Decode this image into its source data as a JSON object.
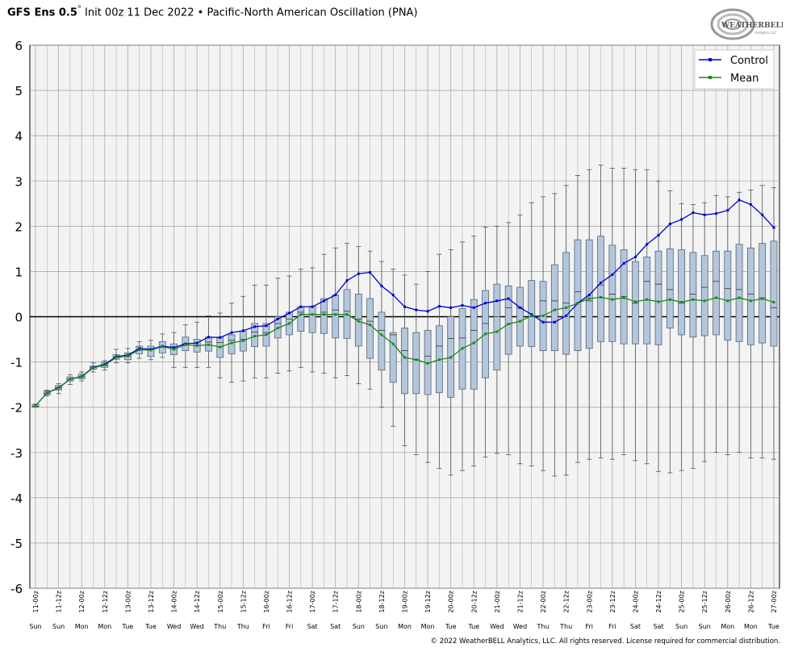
{
  "header": {
    "model": "GFS Ens 0.5",
    "degree": "°",
    "init": "Init 00z 11 Dec 2022",
    "bullet": "•",
    "product": "Pacific-North American Oscillation (PNA)"
  },
  "logo": {
    "text_main": "WEATHERBELL",
    "text_sub": "Analytics LLC"
  },
  "footer": {
    "copyright": "© 2022 WeatherBELL Analytics, LLC. All rights reserved. License required for commercial distribution."
  },
  "colors": {
    "control": "#0000cc",
    "mean": "#1a8a1a",
    "box_fill": "#b4c6dc",
    "box_stroke": "#556677",
    "plot_bg": "#f3f3f3",
    "grid": "#aaaaaa"
  },
  "chart_data": {
    "type": "box",
    "ylim": [
      -6,
      6
    ],
    "yticks": [
      6,
      5,
      4,
      3,
      2,
      1,
      0,
      -1,
      -2,
      -3,
      -4,
      -5,
      -6
    ],
    "grid": true,
    "legend_position": "top-right",
    "x": [
      "11-00z",
      "11-06z",
      "11-12z",
      "11-18z",
      "12-00z",
      "12-06z",
      "12-12z",
      "12-18z",
      "13-00z",
      "13-06z",
      "13-12z",
      "13-18z",
      "14-00z",
      "14-06z",
      "14-12z",
      "14-18z",
      "15-00z",
      "15-06z",
      "15-12z",
      "15-18z",
      "16-00z",
      "16-06z",
      "16-12z",
      "16-18z",
      "17-00z",
      "17-06z",
      "17-12z",
      "17-18z",
      "18-00z",
      "18-06z",
      "18-12z",
      "18-18z",
      "19-00z",
      "19-06z",
      "19-12z",
      "19-18z",
      "20-00z",
      "20-06z",
      "20-12z",
      "20-18z",
      "21-00z",
      "21-06z",
      "21-12z",
      "21-18z",
      "22-00z",
      "22-06z",
      "22-12z",
      "22-18z",
      "23-00z",
      "23-06z",
      "23-12z",
      "23-18z",
      "24-00z",
      "24-06z",
      "24-12z",
      "24-18z",
      "25-00z",
      "25-06z",
      "25-12z",
      "25-18z",
      "26-00z",
      "26-06z",
      "26-12z",
      "26-18z",
      "27-00z"
    ],
    "x_tick_labels": [
      "11-00z",
      "11-12z",
      "12-00z",
      "12-12z",
      "13-00z",
      "13-12z",
      "14-00z",
      "14-12z",
      "15-00z",
      "15-12z",
      "16-00z",
      "16-12z",
      "17-00z",
      "17-12z",
      "18-00z",
      "18-12z",
      "19-00z",
      "19-12z",
      "20-00z",
      "20-12z",
      "21-00z",
      "21-12z",
      "22-00z",
      "22-12z",
      "23-00z",
      "23-12z",
      "24-00z",
      "24-12z",
      "25-00z",
      "25-12z",
      "26-00z",
      "26-12z",
      "27-00z"
    ],
    "x_day_labels": [
      "Sun",
      "Sun",
      "Mon",
      "Mon",
      "Tue",
      "Tue",
      "Wed",
      "Wed",
      "Thu",
      "Thu",
      "Fri",
      "Fri",
      "Sat",
      "Sat",
      "Sun",
      "Sun",
      "Mon",
      "Mon",
      "Tue",
      "Tue",
      "Wed",
      "Wed",
      "Thu",
      "Thu",
      "Fri",
      "Fri",
      "Sat",
      "Sat",
      "Sun",
      "Sun",
      "Mon",
      "Mon",
      "Tue"
    ],
    "series": [
      {
        "name": "Control",
        "values": [
          -1.97,
          -1.68,
          -1.57,
          -1.38,
          -1.32,
          -1.12,
          -1.05,
          -0.88,
          -0.85,
          -0.7,
          -0.72,
          -0.65,
          -0.68,
          -0.6,
          -0.58,
          -0.45,
          -0.46,
          -0.35,
          -0.31,
          -0.22,
          -0.2,
          -0.05,
          0.08,
          0.22,
          0.22,
          0.35,
          0.48,
          0.8,
          0.95,
          0.98,
          0.68,
          0.48,
          0.22,
          0.15,
          0.12,
          0.23,
          0.2,
          0.25,
          0.2,
          0.3,
          0.35,
          0.4,
          0.2,
          0.05,
          -0.12,
          -0.12,
          0.02,
          0.3,
          0.48,
          0.75,
          0.93,
          1.18,
          1.32,
          1.6,
          1.8,
          2.05,
          2.15,
          2.3,
          2.25,
          2.28,
          2.35,
          2.58,
          2.48,
          2.25,
          1.97
        ]
      },
      {
        "name": "Mean",
        "values": [
          -1.97,
          -1.68,
          -1.58,
          -1.38,
          -1.33,
          -1.13,
          -1.07,
          -0.9,
          -0.87,
          -0.73,
          -0.74,
          -0.66,
          -0.72,
          -0.62,
          -0.64,
          -0.62,
          -0.67,
          -0.58,
          -0.53,
          -0.43,
          -0.4,
          -0.25,
          -0.15,
          0.05,
          0.05,
          0.05,
          0.05,
          0.05,
          -0.1,
          -0.18,
          -0.4,
          -0.6,
          -0.9,
          -0.95,
          -1.03,
          -0.95,
          -0.9,
          -0.7,
          -0.58,
          -0.38,
          -0.33,
          -0.16,
          -0.1,
          0.02,
          0.02,
          0.15,
          0.2,
          0.3,
          0.4,
          0.43,
          0.38,
          0.42,
          0.33,
          0.38,
          0.33,
          0.38,
          0.32,
          0.38,
          0.35,
          0.42,
          0.35,
          0.42,
          0.35,
          0.4,
          0.32
        ]
      }
    ],
    "boxes": {
      "min": [
        -2.0,
        -1.75,
        -1.7,
        -1.5,
        -1.42,
        -1.22,
        -1.18,
        -1.02,
        -1.02,
        -0.92,
        -0.95,
        -0.9,
        -1.12,
        -1.12,
        -1.12,
        -1.12,
        -1.35,
        -1.45,
        -1.42,
        -1.35,
        -1.35,
        -1.25,
        -1.2,
        -1.12,
        -1.22,
        -1.25,
        -1.35,
        -1.3,
        -1.48,
        -1.6,
        -2.0,
        -2.42,
        -2.85,
        -3.05,
        -3.22,
        -3.35,
        -3.5,
        -3.4,
        -3.3,
        -3.1,
        -3.02,
        -3.05,
        -3.25,
        -3.3,
        -3.4,
        -3.52,
        -3.5,
        -3.22,
        -3.15,
        -3.12,
        -3.15,
        -3.05,
        -3.18,
        -3.25,
        -3.42,
        -3.45,
        -3.4,
        -3.35,
        -3.2,
        -3.0,
        -3.05,
        -3.0,
        -3.12,
        -3.12,
        -3.15
      ],
      "q1": [
        -2.0,
        -1.72,
        -1.62,
        -1.42,
        -1.37,
        -1.16,
        -1.12,
        -0.94,
        -0.95,
        -0.82,
        -0.88,
        -0.8,
        -0.84,
        -0.75,
        -0.78,
        -0.76,
        -0.9,
        -0.82,
        -0.76,
        -0.66,
        -0.65,
        -0.47,
        -0.4,
        -0.32,
        -0.35,
        -0.37,
        -0.47,
        -0.48,
        -0.65,
        -0.92,
        -1.18,
        -1.45,
        -1.7,
        -1.7,
        -1.72,
        -1.68,
        -1.78,
        -1.6,
        -1.6,
        -1.35,
        -1.18,
        -0.83,
        -0.65,
        -0.66,
        -0.75,
        -0.75,
        -0.83,
        -0.75,
        -0.7,
        -0.55,
        -0.55,
        -0.6,
        -0.6,
        -0.6,
        -0.62,
        -0.25,
        -0.4,
        -0.45,
        -0.42,
        -0.4,
        -0.52,
        -0.55,
        -0.62,
        -0.58,
        -0.65
      ],
      "median": [
        -1.98,
        -1.69,
        -1.57,
        -1.38,
        -1.33,
        -1.12,
        -1.07,
        -0.89,
        -0.87,
        -0.73,
        -0.73,
        -0.68,
        -0.7,
        -0.6,
        -0.63,
        -0.56,
        -0.57,
        -0.52,
        -0.5,
        -0.34,
        -0.35,
        -0.15,
        -0.05,
        0.1,
        0.05,
        0.1,
        0.15,
        0.12,
        -0.05,
        -0.1,
        -0.3,
        -0.4,
        -0.75,
        -0.95,
        -0.87,
        -0.65,
        -0.48,
        -0.47,
        -0.3,
        -0.15,
        0.0,
        0.2,
        0.2,
        0.0,
        0.35,
        0.35,
        0.3,
        0.55,
        0.35,
        0.7,
        0.5,
        0.45,
        0.3,
        0.78,
        0.72,
        0.6,
        0.3,
        0.5,
        0.65,
        0.78,
        0.62,
        0.6,
        0.5,
        0.42,
        0.2
      ],
      "q3": [
        -1.94,
        -1.64,
        -1.52,
        -1.33,
        -1.27,
        -1.09,
        -1.0,
        -0.84,
        -0.8,
        -0.65,
        -0.65,
        -0.55,
        -0.6,
        -0.45,
        -0.5,
        -0.45,
        -0.45,
        -0.4,
        -0.32,
        -0.15,
        -0.15,
        0.0,
        0.1,
        0.22,
        0.23,
        0.4,
        0.48,
        0.6,
        0.5,
        0.4,
        0.1,
        -0.35,
        -0.25,
        -0.35,
        -0.3,
        -0.2,
        0.0,
        0.18,
        0.38,
        0.58,
        0.72,
        0.68,
        0.65,
        0.8,
        0.78,
        1.15,
        1.42,
        1.7,
        1.7,
        1.78,
        1.58,
        1.48,
        1.22,
        1.32,
        1.45,
        1.5,
        1.48,
        1.42,
        1.35,
        1.45,
        1.45,
        1.6,
        1.52,
        1.62,
        1.67
      ],
      "max": [
        -1.93,
        -1.62,
        -1.48,
        -1.28,
        -1.22,
        -1.02,
        -0.97,
        -0.72,
        -0.7,
        -0.55,
        -0.52,
        -0.38,
        -0.35,
        -0.18,
        -0.12,
        0.02,
        0.08,
        0.3,
        0.45,
        0.7,
        0.7,
        0.85,
        0.9,
        1.05,
        1.08,
        1.38,
        1.52,
        1.62,
        1.55,
        1.45,
        1.22,
        1.05,
        0.92,
        0.72,
        1.0,
        1.38,
        1.48,
        1.65,
        1.78,
        1.98,
        2.0,
        2.08,
        2.25,
        2.52,
        2.65,
        2.72,
        2.9,
        3.12,
        3.25,
        3.35,
        3.28,
        3.28,
        3.25,
        3.25,
        3.0,
        2.78,
        2.5,
        2.48,
        2.52,
        2.68,
        2.65,
        2.75,
        2.8,
        2.9,
        2.85
      ]
    }
  }
}
